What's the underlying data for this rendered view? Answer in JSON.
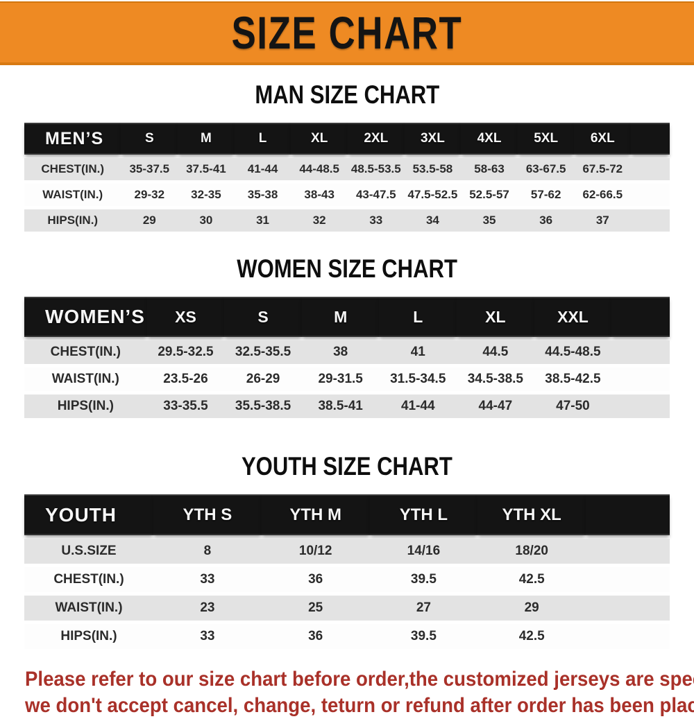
{
  "banner": {
    "title": "SIZE CHART"
  },
  "colors": {
    "banner_orange": "#ee8a23",
    "table_header_black": "#141414",
    "row_gray": "#e3e3e3",
    "row_white": "#fdfdfd",
    "note_red": "#a93129"
  },
  "sections": [
    {
      "key": "men",
      "heading": "MAN SIZE CHART",
      "table": {
        "header": [
          "MEN’S",
          "S",
          "M",
          "L",
          "XL",
          "2XL",
          "3XL",
          "4XL",
          "5XL",
          "6XL"
        ],
        "rows": [
          [
            "CHEST(IN.)",
            "35-37.5",
            "37.5-41",
            "41-44",
            "44-48.5",
            "48.5-53.5",
            "53.5-58",
            "58-63",
            "63-67.5",
            "67.5-72"
          ],
          [
            "WAIST(IN.)",
            "29-32",
            "32-35",
            "35-38",
            "38-43",
            "43-47.5",
            "47.5-52.5",
            "52.5-57",
            "57-62",
            "62-66.5"
          ],
          [
            "HIPS(IN.)",
            "29",
            "30",
            "31",
            "32",
            "33",
            "34",
            "35",
            "36",
            "37"
          ]
        ]
      }
    },
    {
      "key": "women",
      "heading": "WOMEN SIZE CHART",
      "table": {
        "header": [
          "WOMEN’S",
          "XS",
          "S",
          "M",
          "L",
          "XL",
          "XXL"
        ],
        "rows": [
          [
            "CHEST(IN.)",
            "29.5-32.5",
            "32.5-35.5",
            "38",
            "41",
            "44.5",
            "44.5-48.5"
          ],
          [
            "WAIST(IN.)",
            "23.5-26",
            "26-29",
            "29-31.5",
            "31.5-34.5",
            "34.5-38.5",
            "38.5-42.5"
          ],
          [
            "HIPS(IN.)",
            "33-35.5",
            "35.5-38.5",
            "38.5-41",
            "41-44",
            "44-47",
            "47-50"
          ]
        ]
      }
    },
    {
      "key": "youth",
      "heading": "YOUTH SIZE CHART",
      "table": {
        "header": [
          "YOUTH",
          "YTH S",
          "YTH M",
          "YTH L",
          "YTH XL"
        ],
        "rows": [
          [
            "U.S.SIZE",
            "8",
            "10/12",
            "14/16",
            "18/20"
          ],
          [
            "CHEST(IN.)",
            "33",
            "36",
            "39.5",
            "42.5"
          ],
          [
            "WAIST(IN.)",
            "23",
            "25",
            "27",
            "29"
          ],
          [
            "HIPS(IN.)",
            "33",
            "36",
            "39.5",
            "42.5"
          ]
        ]
      }
    }
  ],
  "note": {
    "line1": "Please refer to our size chart before order,the customized jerseys are special products,",
    "line2": "we don't accept cancel, change, teturn or refund after order has been placed!"
  }
}
